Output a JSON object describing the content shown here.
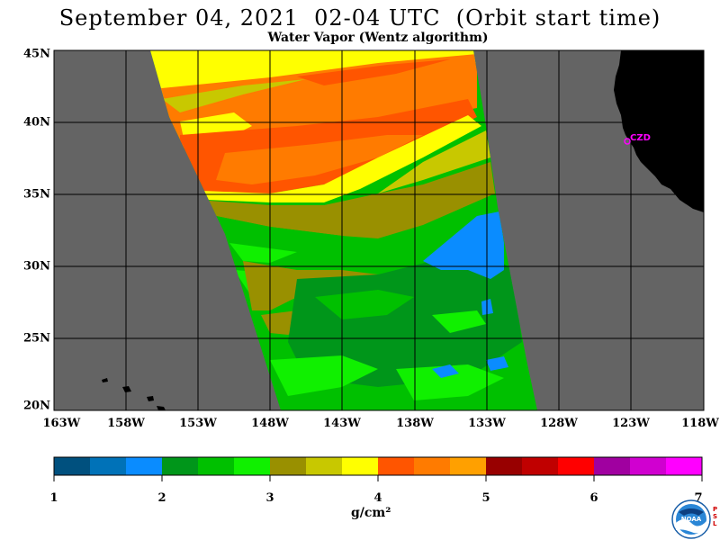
{
  "title": "September 04, 2021  02-04 UTC  (Orbit start time)",
  "subtitle": "Water Vapor (Wentz algorithm)",
  "lat_labels": [
    "45N",
    "40N",
    "35N",
    "30N",
    "25N",
    "20N"
  ],
  "lon_labels": [
    "163W",
    "158W",
    "153W",
    "148W",
    "143W",
    "138W",
    "133W",
    "128W",
    "123W",
    "118W"
  ],
  "station_label": "CZD",
  "colorbar": {
    "ticks": [
      "1",
      "2",
      "3",
      "4",
      "5",
      "6",
      "7"
    ],
    "units": "g/cm²",
    "colors": [
      "#00507e",
      "#0072b8",
      "#0a8cff",
      "#00961a",
      "#00c000",
      "#10f000",
      "#999000",
      "#c8c800",
      "#ffff00",
      "#ff5500",
      "#ff7b00",
      "#ffa000",
      "#980000",
      "#c00000",
      "#ff0000",
      "#a000a0",
      "#d000d0",
      "#ff00ff"
    ]
  },
  "colors": {
    "ocean": "#646464",
    "land": "#000000",
    "station": "#ff00ff"
  },
  "logo": {
    "name": "NOAA",
    "side_text": "PSL"
  }
}
